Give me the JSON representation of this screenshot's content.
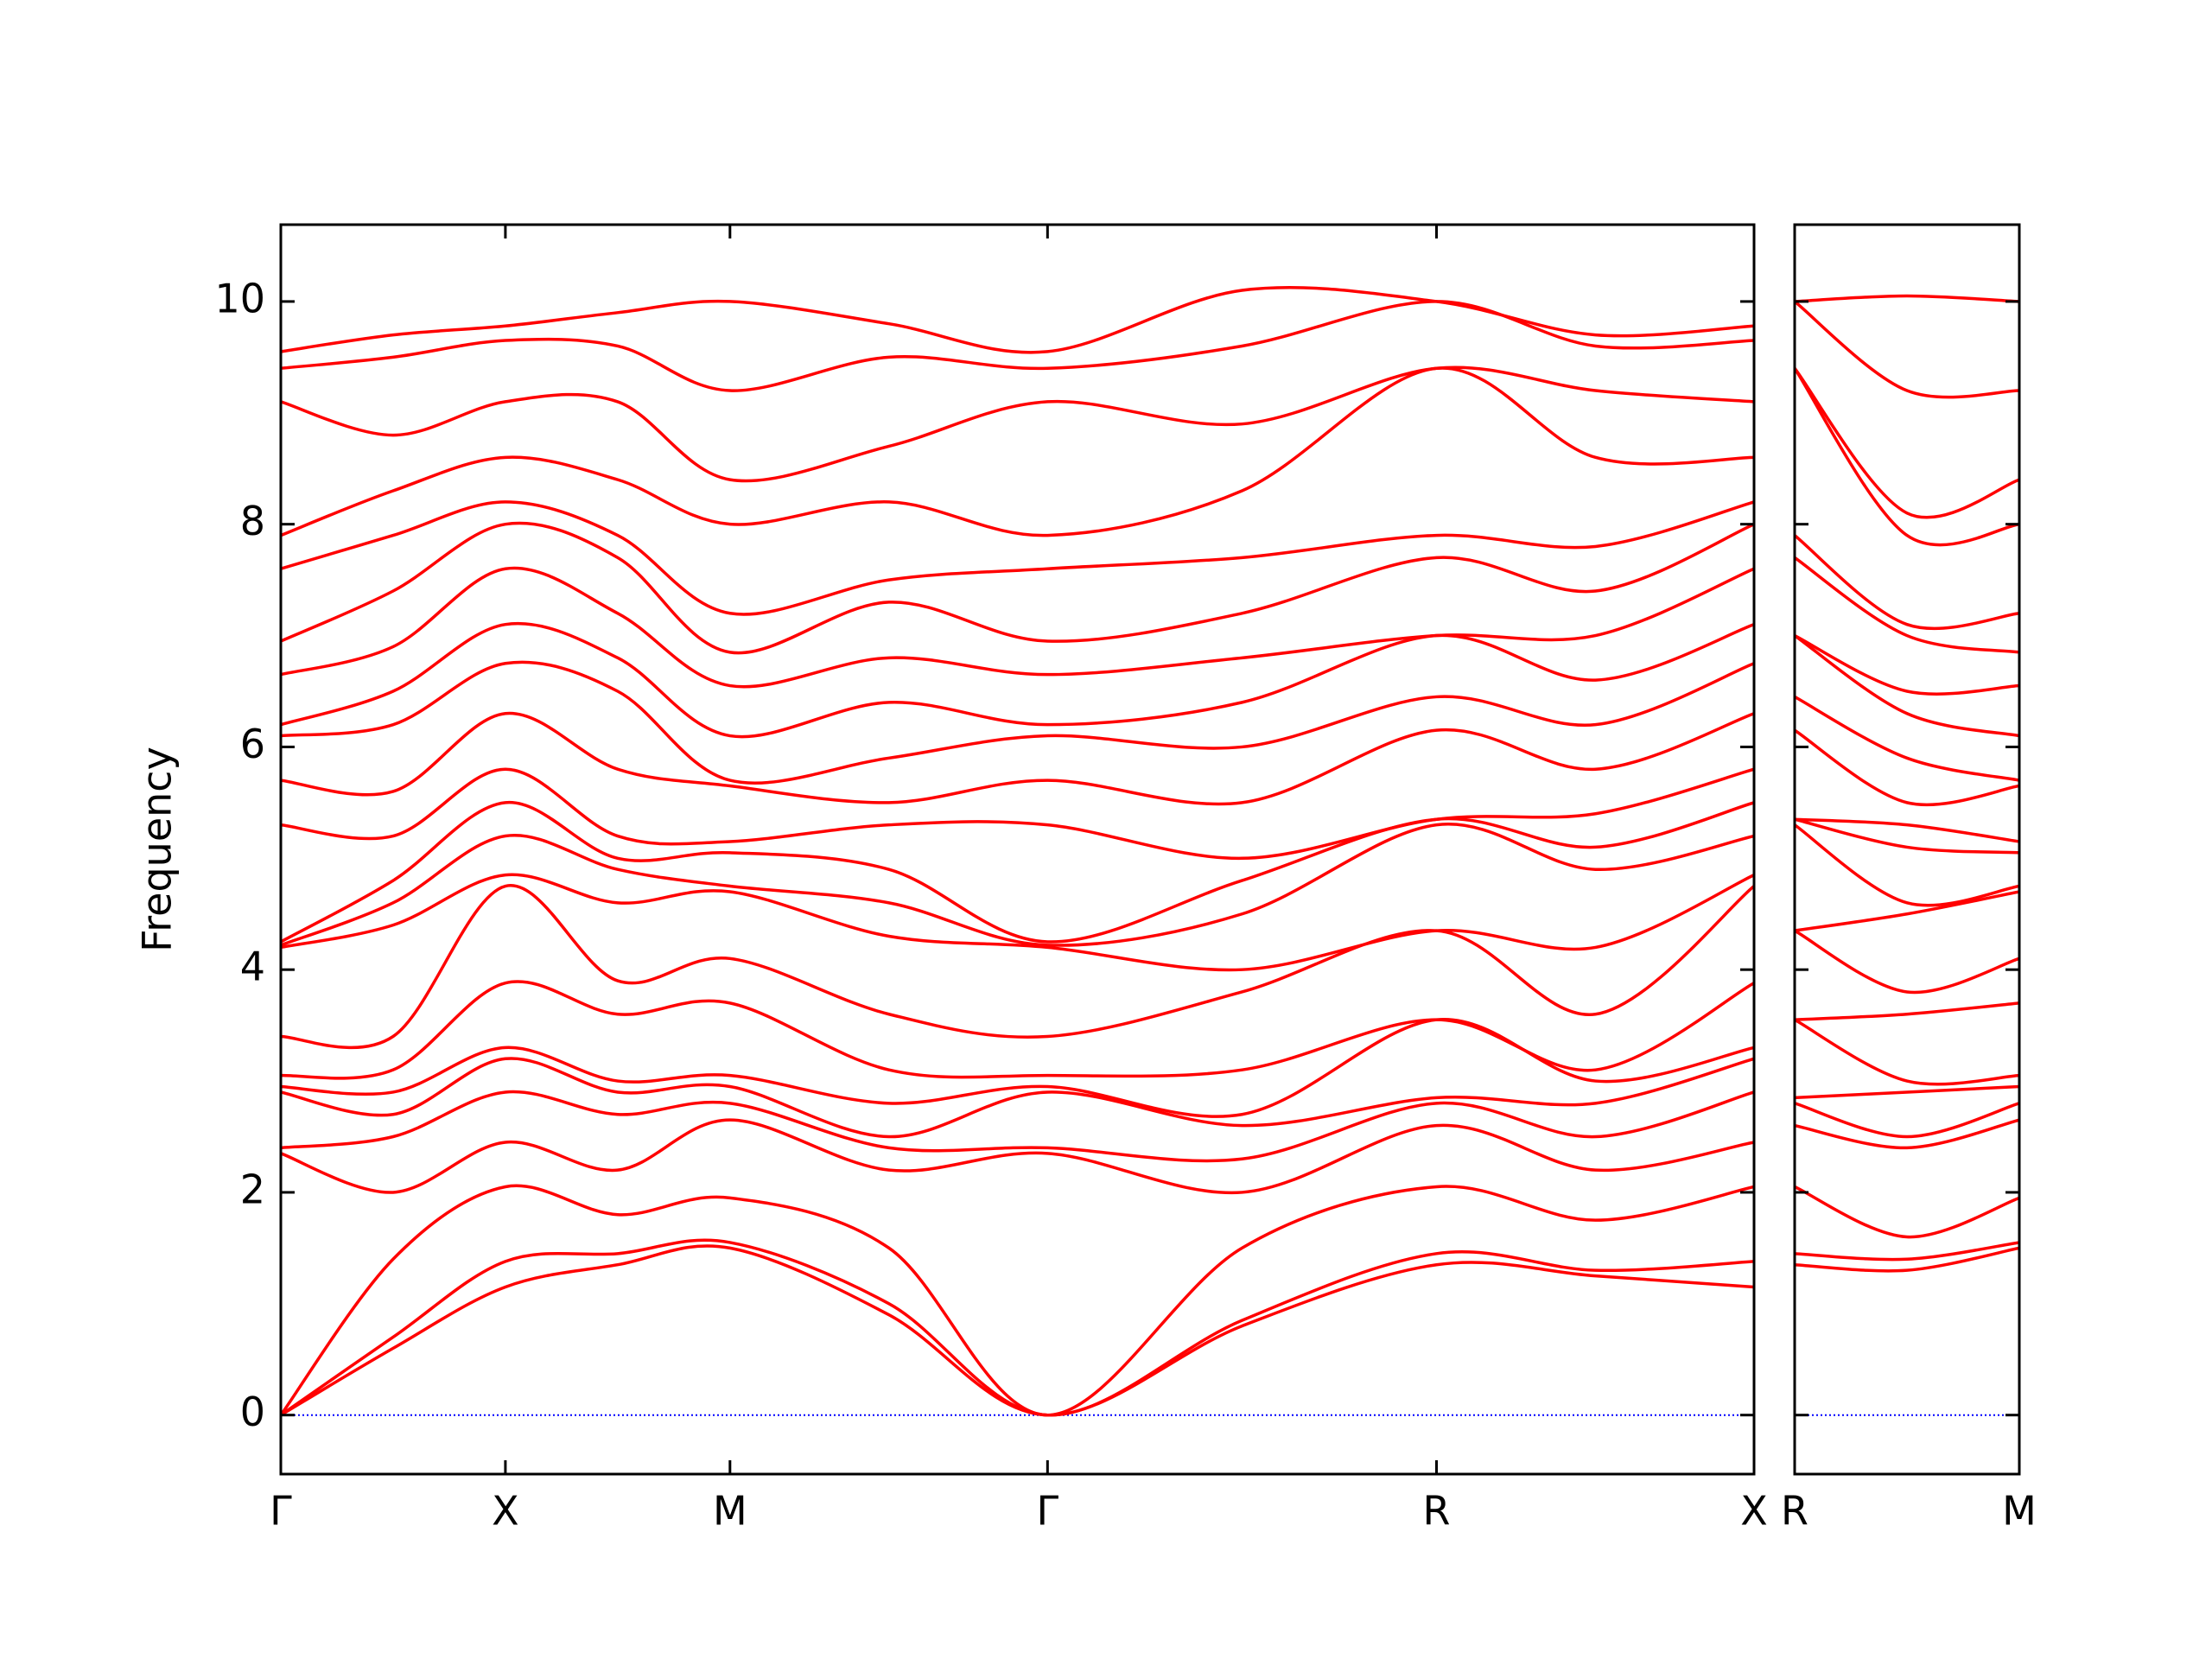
{
  "chart_data": [
    {
      "type": "line",
      "ylabel": "Frequency",
      "color": "#ff0000",
      "hline": 0,
      "hline_color": "#0000ff",
      "x": [
        0,
        0.25,
        0.5,
        0.75,
        1.0,
        1.354,
        1.707,
        2.14,
        2.573,
        2.927,
        3.28
      ],
      "xlim": [
        0,
        3.28
      ],
      "xticks": [
        {
          "value": 0,
          "label": "Γ"
        },
        {
          "value": 0.5,
          "label": "X"
        },
        {
          "value": 1.0,
          "label": "M"
        },
        {
          "value": 1.707,
          "label": "Γ"
        },
        {
          "value": 2.573,
          "label": "R"
        },
        {
          "value": 3.28,
          "label": "X"
        }
      ],
      "ylim": [
        -0.53,
        10.69
      ],
      "yticks": [
        0,
        2,
        4,
        6,
        8,
        10
      ],
      "ytick_labels": true,
      "series": [
        {
          "values": [
            0,
            0.6,
            1.15,
            1.35,
            1.5,
            0.9,
            0,
            0.8,
            1.35,
            1.25,
            1.15
          ]
        },
        {
          "values": [
            0,
            0.7,
            1.38,
            1.45,
            1.55,
            1.0,
            0,
            0.85,
            1.45,
            1.3,
            1.38
          ]
        },
        {
          "values": [
            0,
            1.4,
            2.05,
            1.8,
            1.95,
            1.5,
            0,
            1.5,
            2.05,
            1.75,
            2.05
          ]
        },
        {
          "values": [
            2.35,
            2.0,
            2.45,
            2.2,
            2.65,
            2.2,
            2.35,
            2.0,
            2.6,
            2.2,
            2.45
          ]
        },
        {
          "values": [
            2.4,
            2.5,
            2.9,
            2.7,
            2.8,
            2.4,
            2.4,
            2.3,
            2.8,
            2.5,
            2.9
          ]
        },
        {
          "values": [
            2.9,
            2.7,
            3.2,
            2.9,
            2.95,
            2.5,
            2.9,
            2.6,
            2.85,
            2.8,
            3.2
          ]
        },
        {
          "values": [
            2.95,
            2.9,
            3.3,
            3.0,
            3.05,
            2.8,
            2.95,
            2.7,
            3.55,
            3.0,
            3.3
          ]
        },
        {
          "values": [
            3.05,
            3.1,
            3.88,
            3.6,
            3.7,
            3.1,
            3.05,
            3.1,
            3.55,
            3.1,
            3.88
          ]
        },
        {
          "values": [
            3.4,
            3.4,
            4.75,
            3.9,
            4.1,
            3.6,
            3.4,
            3.8,
            4.35,
            3.6,
            4.75
          ]
        },
        {
          "values": [
            4.2,
            4.4,
            4.85,
            4.6,
            4.7,
            4.3,
            4.2,
            4.0,
            4.35,
            4.2,
            4.85
          ]
        },
        {
          "values": [
            4.22,
            4.6,
            5.2,
            4.9,
            4.75,
            4.6,
            4.22,
            4.5,
            5.3,
            4.9,
            5.2
          ]
        },
        {
          "values": [
            4.25,
            4.8,
            5.5,
            5.0,
            5.05,
            4.9,
            4.25,
            4.8,
            5.35,
            5.1,
            5.5
          ]
        },
        {
          "values": [
            5.3,
            5.2,
            5.8,
            5.2,
            5.15,
            5.3,
            5.3,
            5.0,
            5.35,
            5.4,
            5.8
          ]
        },
        {
          "values": [
            5.7,
            5.6,
            6.3,
            5.8,
            5.65,
            5.5,
            5.7,
            5.5,
            6.15,
            5.8,
            6.3
          ]
        },
        {
          "values": [
            6.1,
            6.2,
            6.75,
            6.5,
            5.7,
            5.9,
            6.1,
            6.0,
            6.45,
            6.2,
            6.75
          ]
        },
        {
          "values": [
            6.2,
            6.5,
            7.1,
            6.8,
            6.1,
            6.4,
            6.2,
            6.4,
            7.0,
            6.6,
            7.1
          ]
        },
        {
          "values": [
            6.65,
            6.9,
            7.6,
            7.2,
            6.55,
            6.8,
            6.65,
            6.8,
            7.0,
            7.0,
            7.6
          ]
        },
        {
          "values": [
            6.95,
            7.4,
            8.0,
            7.7,
            6.85,
            7.3,
            6.95,
            7.2,
            7.7,
            7.4,
            8.0
          ]
        },
        {
          "values": [
            7.6,
            7.9,
            8.2,
            7.9,
            7.2,
            7.5,
            7.6,
            7.7,
            7.9,
            7.8,
            8.2
          ]
        },
        {
          "values": [
            7.9,
            8.3,
            8.6,
            8.4,
            8.0,
            8.2,
            7.9,
            8.3,
            9.4,
            8.6,
            8.6
          ]
        },
        {
          "values": [
            9.1,
            8.8,
            9.1,
            9.1,
            8.4,
            8.7,
            9.1,
            8.9,
            9.4,
            9.2,
            9.1
          ]
        },
        {
          "values": [
            9.4,
            9.5,
            9.65,
            9.6,
            9.2,
            9.5,
            9.4,
            9.6,
            10.0,
            9.6,
            9.65
          ]
        },
        {
          "values": [
            9.55,
            9.7,
            9.78,
            9.9,
            10.0,
            9.8,
            9.55,
            10.1,
            10.0,
            9.7,
            9.78
          ]
        }
      ]
    },
    {
      "type": "line",
      "color": "#ff0000",
      "hline": 0,
      "hline_color": "#0000ff",
      "x": [
        0,
        0.25,
        0.5
      ],
      "xlim": [
        0,
        0.5
      ],
      "xticks": [
        {
          "value": 0,
          "label": "R"
        },
        {
          "value": 0.5,
          "label": "M"
        }
      ],
      "ylim": [
        -0.53,
        10.69
      ],
      "yticks": [
        0,
        2,
        4,
        6,
        8,
        10
      ],
      "ytick_labels": false,
      "series": [
        {
          "values": [
            1.35,
            1.3,
            1.5
          ]
        },
        {
          "values": [
            1.45,
            1.4,
            1.55
          ]
        },
        {
          "values": [
            2.05,
            1.6,
            1.95
          ]
        },
        {
          "values": [
            2.6,
            2.4,
            2.65
          ]
        },
        {
          "values": [
            2.8,
            2.5,
            2.8
          ]
        },
        {
          "values": [
            2.85,
            2.9,
            2.95
          ]
        },
        {
          "values": [
            3.55,
            3.0,
            3.05
          ]
        },
        {
          "values": [
            3.55,
            3.6,
            3.7
          ]
        },
        {
          "values": [
            4.35,
            3.8,
            4.1
          ]
        },
        {
          "values": [
            4.35,
            4.5,
            4.7
          ]
        },
        {
          "values": [
            5.3,
            4.6,
            4.75
          ]
        },
        {
          "values": [
            5.35,
            5.1,
            5.05
          ]
        },
        {
          "values": [
            5.35,
            5.3,
            5.15
          ]
        },
        {
          "values": [
            6.15,
            5.5,
            5.65
          ]
        },
        {
          "values": [
            6.45,
            5.9,
            5.7
          ]
        },
        {
          "values": [
            7.0,
            6.3,
            6.1
          ]
        },
        {
          "values": [
            7.0,
            6.5,
            6.55
          ]
        },
        {
          "values": [
            7.7,
            7.0,
            6.85
          ]
        },
        {
          "values": [
            7.9,
            7.1,
            7.2
          ]
        },
        {
          "values": [
            9.4,
            7.9,
            8.0
          ]
        },
        {
          "values": [
            9.4,
            8.1,
            8.4
          ]
        },
        {
          "values": [
            10.0,
            9.2,
            9.2
          ]
        },
        {
          "values": [
            10.0,
            10.05,
            10.0
          ]
        }
      ]
    }
  ]
}
